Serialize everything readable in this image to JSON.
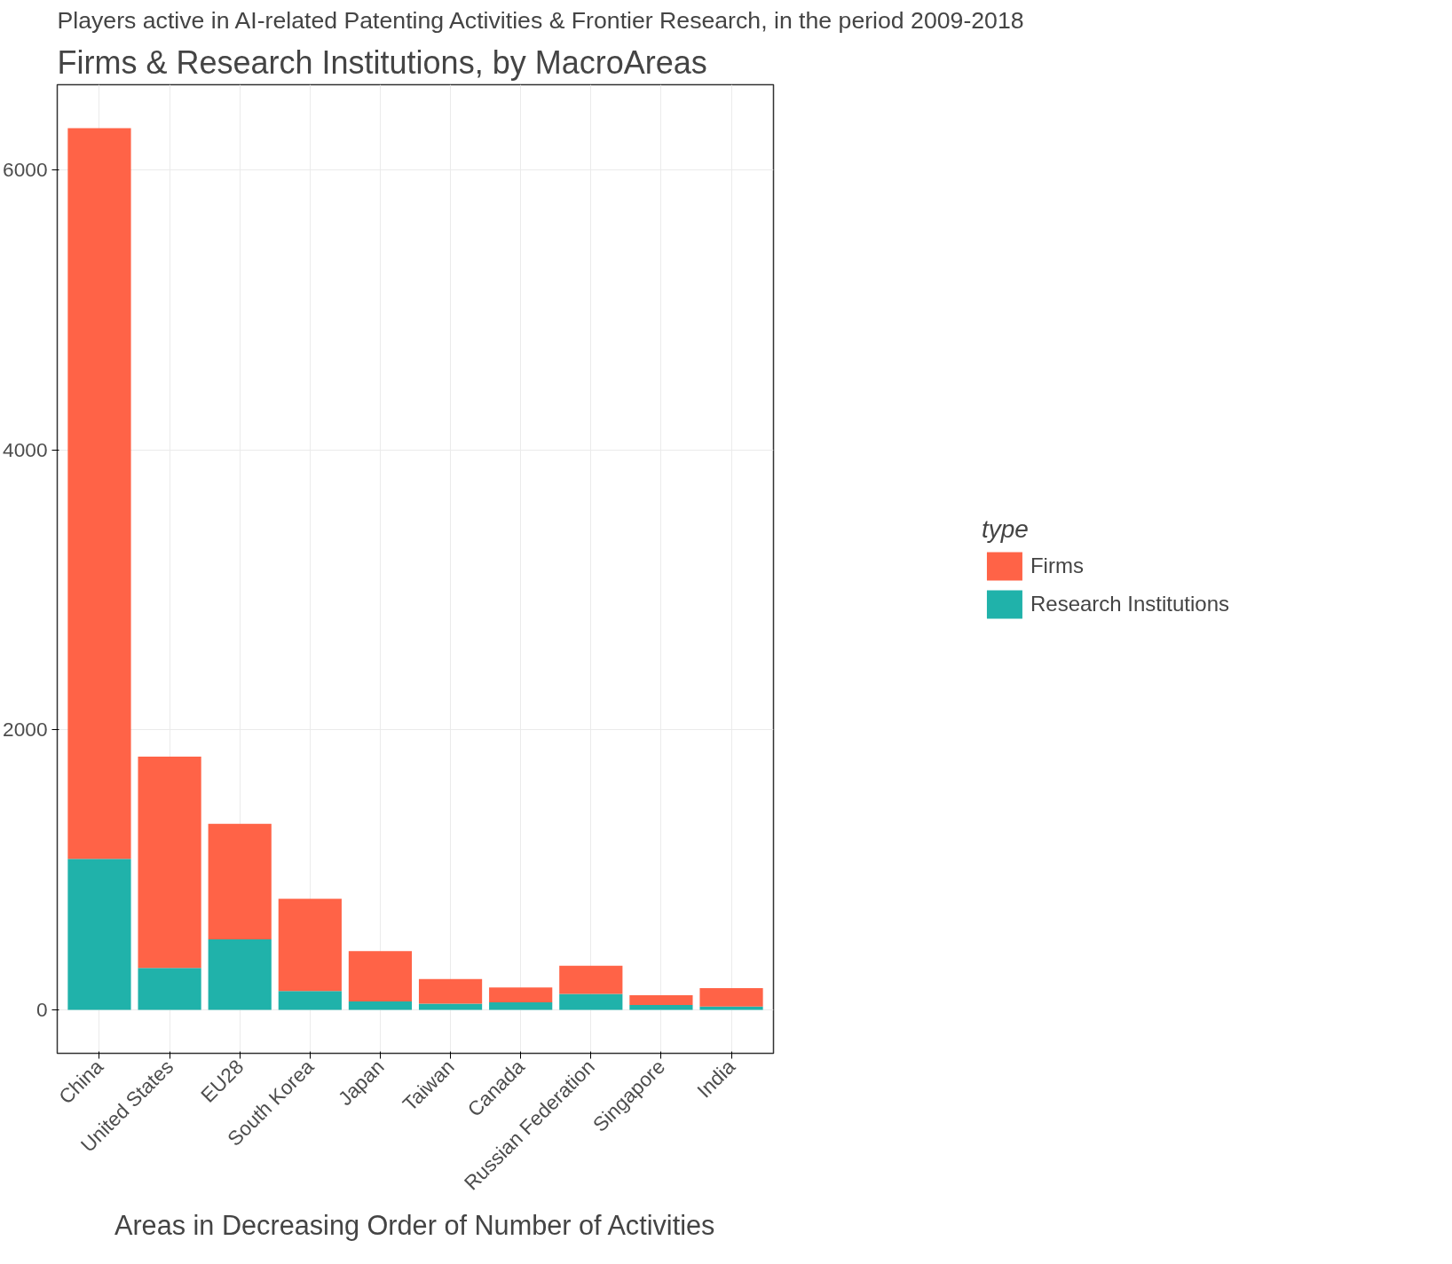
{
  "chart_data": {
    "type": "bar",
    "title": "Firms & Research Institutions, by MacroAreas",
    "subtitle": "Players active in AI-related Patenting Activities & Frontier Research, in the period 2009-2018",
    "xlabel": "Areas in Decreasing Order of Number of Activities",
    "legend_title": "type",
    "categories": [
      "China",
      "United States",
      "EU28",
      "South Korea",
      "Japan",
      "Taiwan",
      "Canada",
      "Russian Federation",
      "Singapore",
      "India"
    ],
    "stacked": true,
    "series": [
      {
        "name": "Research Institutions",
        "color": "#20b2aa",
        "values": [
          1080,
          300,
          505,
          135,
          60,
          45,
          55,
          115,
          35,
          25
        ]
      },
      {
        "name": "Firms",
        "color": "#ff6347",
        "values": [
          5220,
          1510,
          825,
          660,
          360,
          175,
          105,
          200,
          70,
          130
        ]
      }
    ],
    "ylim": [
      -310,
      6610
    ],
    "yticks": [
      0,
      2000,
      4000,
      6000
    ],
    "grid": true,
    "legend": "right"
  }
}
